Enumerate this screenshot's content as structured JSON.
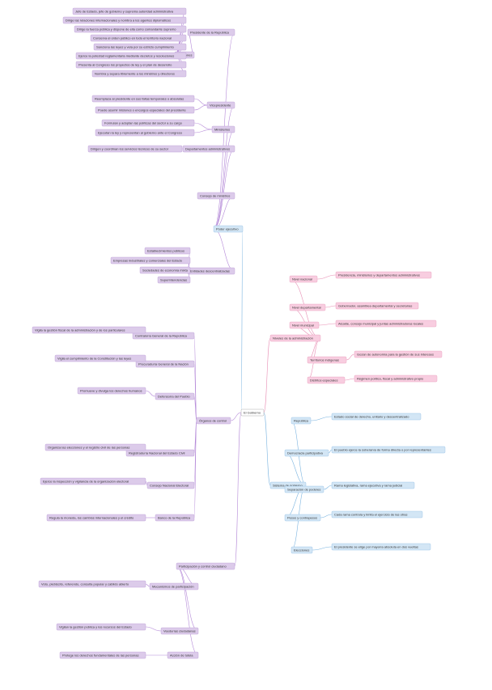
{
  "nodes": [
    {
      "label": "El Gobierno"
    },
    {
      "label": "Poder ejecutivo"
    },
    {
      "label": "Presidente de la República"
    },
    {
      "label": "Funciones"
    },
    {
      "label": "Jefe de Estado, jefe de gobierno y suprema autoridad administrativa"
    },
    {
      "label": "Dirige las relaciones internacionales y nombra a los agentes diplomáticos"
    },
    {
      "label": "Dirige la fuerza pública y dispone de ella como comandante supremo"
    },
    {
      "label": "Conserva el orden público en todo el territorio nacional"
    },
    {
      "label": "Sanciona las leyes y vela por su estricto cumplimiento"
    },
    {
      "label": "Ejerce la potestad reglamentaria mediante decretos y resoluciones"
    },
    {
      "label": "Presenta al Congreso los proyectos de ley y el plan de desarrollo"
    },
    {
      "label": "Nombra y separa libremente a los ministros y directores"
    },
    {
      "label": "Vicepresidente"
    },
    {
      "label": "Reemplaza al presidente en sus faltas temporales o absolutas"
    },
    {
      "label": "Puede asumir misiones o encargos especiales del presidente"
    },
    {
      "label": "Ministerios"
    },
    {
      "label": "Formulan y adoptan las políticas del sector a su cargo"
    },
    {
      "label": "Ejecutan la ley y representan al gobierno ante el Congreso"
    },
    {
      "label": "Departamentos administrativos"
    },
    {
      "label": "Dirigen y coordinan los servicios técnicos de su sector"
    },
    {
      "label": "Consejo de ministros"
    },
    {
      "label": "Entidades descentralizadas"
    },
    {
      "label": "Establecimientos públicos"
    },
    {
      "label": "Empresas industriales y comerciales del Estado"
    },
    {
      "label": "Sociedades de economía mixta"
    },
    {
      "label": "Superintendencias"
    },
    {
      "label": "Órganos de control"
    },
    {
      "label": "Contraloría General de la República"
    },
    {
      "label": "Vigila la gestión fiscal de la administración y de los particulares"
    },
    {
      "label": "Procuraduría General de la Nación"
    },
    {
      "label": "Vigila el cumplimiento de la Constitución y las leyes"
    },
    {
      "label": "Defensoría del Pueblo"
    },
    {
      "label": "Promueve y divulga los derechos humanos"
    },
    {
      "label": "Registraduría Nacional del Estado Civil"
    },
    {
      "label": "Organiza las elecciones y el registro civil de las personas"
    },
    {
      "label": "Consejo Nacional Electoral"
    },
    {
      "label": "Ejerce la inspección y vigilancia de la organización electoral"
    },
    {
      "label": "Banco de la República"
    },
    {
      "label": "Regula la moneda, los cambios internacionales y el crédito"
    },
    {
      "label": "Participación y control ciudadano"
    },
    {
      "label": "Mecanismos de participación"
    },
    {
      "label": "Voto, plebiscito, referendo, consulta popular y cabildo abierto"
    },
    {
      "label": "Veedurías ciudadanas"
    },
    {
      "label": "Vigilan la gestión pública y los recursos del Estado"
    },
    {
      "label": "Acción de tutela"
    },
    {
      "label": "Protege los derechos fundamentales de las personas"
    },
    {
      "label": "Niveles de la administración"
    },
    {
      "label": "Nivel nacional"
    },
    {
      "label": "Presidencia, ministerios y departamentos administrativos"
    },
    {
      "label": "Nivel departamental"
    },
    {
      "label": "Gobernador, asamblea departamental y secretarías"
    },
    {
      "label": "Nivel municipal"
    },
    {
      "label": "Alcalde, concejo municipal y juntas administradoras locales"
    },
    {
      "label": "Territorios indígenas"
    },
    {
      "label": "Gozan de autonomía para la gestión de sus intereses"
    },
    {
      "label": "Distritos especiales"
    },
    {
      "label": "Régimen político, fiscal y administrativo propio"
    },
    {
      "label": "Sistema de gobierno"
    },
    {
      "label": "República"
    },
    {
      "label": "Estado social de derecho, unitario y descentralizado"
    },
    {
      "label": "Democracia participativa"
    },
    {
      "label": "El pueblo ejerce la soberanía de forma directa o por representantes"
    },
    {
      "label": "Separación de poderes"
    },
    {
      "label": "Rama legislativa, rama ejecutiva y rama judicial"
    },
    {
      "label": "Pesos y contrapesos"
    },
    {
      "label": "Cada rama controla y limita el ejercicio de las otras"
    },
    {
      "label": "Elecciones"
    },
    {
      "label": "El presidente se elige por mayoría absoluta en dos vueltas"
    }
  ]
}
